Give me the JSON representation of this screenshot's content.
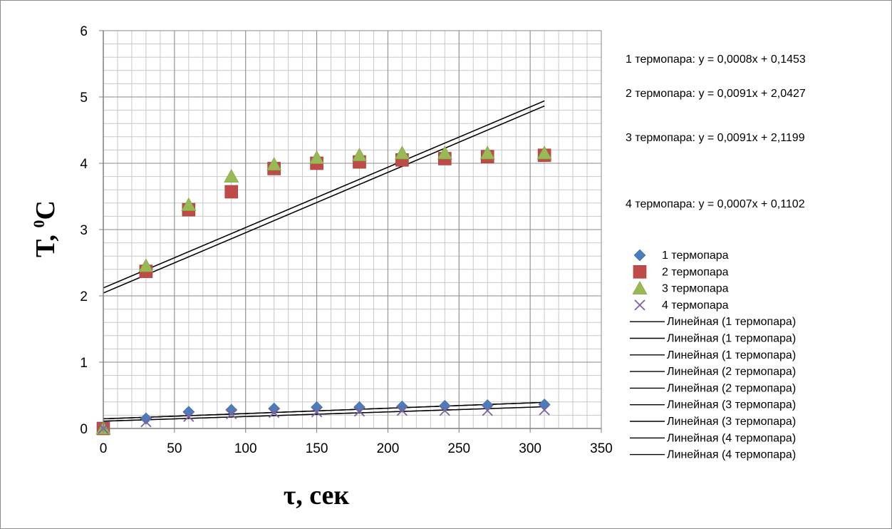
{
  "chart_data": {
    "type": "scatter",
    "title": "",
    "xlabel": "τ, сек",
    "ylabel_main": "T, ",
    "ylabel_sup": "0",
    "ylabel_unit": "C",
    "xlim": [
      0,
      350
    ],
    "ylim": [
      0,
      6
    ],
    "xticks": [
      0,
      50,
      100,
      150,
      200,
      250,
      300,
      350
    ],
    "yticks": [
      0,
      1,
      2,
      3,
      4,
      5,
      6
    ],
    "grid": true,
    "minor_grid": true,
    "legend_position": "right",
    "series": [
      {
        "name": "1 термопара",
        "marker": "diamond",
        "color": "#4a7ebb",
        "x": [
          0,
          30,
          60,
          90,
          120,
          150,
          180,
          210,
          240,
          270,
          310
        ],
        "y": [
          0,
          0.15,
          0.25,
          0.28,
          0.3,
          0.32,
          0.32,
          0.33,
          0.34,
          0.35,
          0.36
        ]
      },
      {
        "name": "2 термопара",
        "marker": "square",
        "color": "#be4b48",
        "x": [
          0,
          30,
          60,
          90,
          120,
          150,
          180,
          210,
          240,
          270,
          310
        ],
        "y": [
          0,
          2.37,
          3.3,
          3.57,
          3.92,
          4.0,
          4.02,
          4.05,
          4.07,
          4.1,
          4.12
        ]
      },
      {
        "name": "3 термопара",
        "marker": "triangle",
        "color": "#98b954",
        "x": [
          0,
          30,
          60,
          90,
          120,
          150,
          180,
          210,
          240,
          270,
          310
        ],
        "y": [
          0,
          2.45,
          3.37,
          3.8,
          3.98,
          4.08,
          4.12,
          4.15,
          4.15,
          4.15,
          4.15
        ]
      },
      {
        "name": "4 термопара",
        "marker": "x",
        "color": "#7d60a0",
        "x": [
          0,
          30,
          60,
          90,
          120,
          150,
          180,
          210,
          240,
          270,
          310
        ],
        "y": [
          0,
          0.1,
          0.18,
          0.22,
          0.24,
          0.25,
          0.26,
          0.27,
          0.27,
          0.27,
          0.28
        ]
      }
    ],
    "trendlines": [
      {
        "label": "Линейная (1 термопара)",
        "slope": 0.0008,
        "intercept": 0.1453,
        "x_range": [
          0,
          310
        ]
      },
      {
        "label": "Линейная (1 термопара)",
        "slope": 0.0008,
        "intercept": 0.1453,
        "x_range": [
          0,
          310
        ]
      },
      {
        "label": "Линейная (1 термопара)",
        "slope": 0.0008,
        "intercept": 0.1453,
        "x_range": [
          0,
          310
        ]
      },
      {
        "label": "Линейная (2 термопара)",
        "slope": 0.0091,
        "intercept": 2.0427,
        "x_range": [
          0,
          310
        ]
      },
      {
        "label": "Линейная (2 термопара)",
        "slope": 0.0091,
        "intercept": 2.0427,
        "x_range": [
          0,
          310
        ]
      },
      {
        "label": "Линейная (3 термопара)",
        "slope": 0.0091,
        "intercept": 2.1199,
        "x_range": [
          0,
          310
        ]
      },
      {
        "label": "Линейная (3 термопара)",
        "slope": 0.0091,
        "intercept": 2.1199,
        "x_range": [
          0,
          310
        ]
      },
      {
        "label": "Линейная (4 термопара)",
        "slope": 0.0007,
        "intercept": 0.1102,
        "x_range": [
          0,
          310
        ]
      },
      {
        "label": "Линейная (4 термопара)",
        "slope": 0.0007,
        "intercept": 0.1102,
        "x_range": [
          0,
          310
        ]
      }
    ],
    "equations": [
      "1 термопара: y = 0,0008x + 0,1453",
      "2 термопара: y = 0,0091x + 2,0427",
      "3 термопара: y = 0,0091x + 2,1199",
      "4 термопара: y = 0,0007x + 0,1102"
    ]
  }
}
